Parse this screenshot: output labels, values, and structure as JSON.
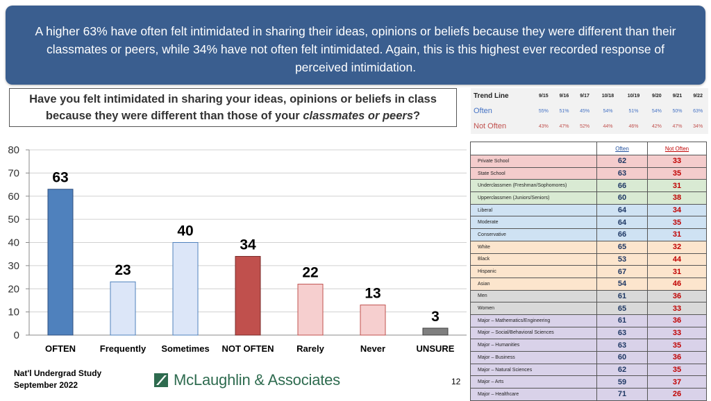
{
  "banner": {
    "text": "A higher 63% have often felt intimidated in sharing their ideas, opinions or beliefs because they were different than their classmates or peers, while 34% have not often felt intimidated. Again, this is this highest ever recorded response of perceived intimidation."
  },
  "question": {
    "text_before": "Have you felt intimidated in sharing your ideas, opinions or beliefs in class because they were different than those of your ",
    "text_italic": "classmates or peers",
    "text_after": "?"
  },
  "chart_data": {
    "type": "bar",
    "categories": [
      "OFTEN",
      "Frequently",
      "Sometimes",
      "NOT OFTEN",
      "Rarely",
      "Never",
      "UNSURE"
    ],
    "values": [
      63,
      23,
      40,
      34,
      22,
      13,
      3
    ],
    "ylim": [
      0,
      80
    ],
    "yticks": [
      0,
      10,
      20,
      30,
      40,
      50,
      60,
      70,
      80
    ],
    "grid": true,
    "colors": [
      "#4f81bd",
      "#dce6f8",
      "#dce6f8",
      "#c0504d",
      "#f6cfcf",
      "#f6cfcf",
      "#7f7f7f"
    ],
    "stroke_colors": [
      "#2f4f7f",
      "#4f81bd",
      "#4f81bd",
      "#7a2a28",
      "#c0504d",
      "#c0504d",
      "#404040"
    ]
  },
  "trend": {
    "header": "Trend Line",
    "dates": [
      "9/15",
      "9/16",
      "9/17",
      "10/18",
      "10/19",
      "9/20",
      "9/21",
      "9/22"
    ],
    "often_label": "Often",
    "often": [
      "55%",
      "51%",
      "45%",
      "54%",
      "51%",
      "54%",
      "50%",
      "63%"
    ],
    "notoften_label": "Not Often",
    "notoften": [
      "43%",
      "47%",
      "52%",
      "44%",
      "46%",
      "42%",
      "47%",
      "34%"
    ]
  },
  "demo": {
    "col_often": "Often",
    "col_notoften": "Not Often",
    "rows": [
      {
        "label": "Private School",
        "often": "62",
        "notoften": "33",
        "color": "pink"
      },
      {
        "label": "State School",
        "often": "63",
        "notoften": "35",
        "color": "pink"
      },
      {
        "label": "Underclassmen (Freshman/Sophomores)",
        "often": "66",
        "notoften": "31",
        "color": "green"
      },
      {
        "label": "Upperclassmen (Juniors/Seniors)",
        "often": "60",
        "notoften": "38",
        "color": "green"
      },
      {
        "label": "Liberal",
        "often": "64",
        "notoften": "34",
        "color": "blue"
      },
      {
        "label": "Moderate",
        "often": "64",
        "notoften": "35",
        "color": "blue"
      },
      {
        "label": "Conservative",
        "often": "66",
        "notoften": "31",
        "color": "blue"
      },
      {
        "label": "White",
        "often": "65",
        "notoften": "32",
        "color": "peach"
      },
      {
        "label": "Black",
        "often": "53",
        "notoften": "44",
        "color": "peach"
      },
      {
        "label": "Hispanic",
        "often": "67",
        "notoften": "31",
        "color": "peach"
      },
      {
        "label": "Asian",
        "often": "54",
        "notoften": "46",
        "color": "peach"
      },
      {
        "label": "Men",
        "often": "61",
        "notoften": "36",
        "color": "gray"
      },
      {
        "label": "Women",
        "often": "65",
        "notoften": "33",
        "color": "gray"
      },
      {
        "label": "Major – Mathematics/Engineering",
        "often": "61",
        "notoften": "36",
        "color": "lav"
      },
      {
        "label": "Major – Social/Behavioral Sciences",
        "often": "63",
        "notoften": "33",
        "color": "lav"
      },
      {
        "label": "Major – Humanities",
        "often": "63",
        "notoften": "35",
        "color": "lav"
      },
      {
        "label": "Major – Business",
        "often": "60",
        "notoften": "36",
        "color": "lav"
      },
      {
        "label": "Major – Natural Sciences",
        "often": "62",
        "notoften": "35",
        "color": "lav"
      },
      {
        "label": "Major – Arts",
        "often": "59",
        "notoften": "37",
        "color": "lav"
      },
      {
        "label": "Major – Healthcare",
        "often": "71",
        "notoften": "26",
        "color": "lav"
      }
    ]
  },
  "footer": {
    "source_line1": "Nat'l Undergrad Study",
    "source_line2": "September 2022",
    "logo_text": "McLaughlin & Associates",
    "logo_icon": "slash-square-icon",
    "page_number": "12"
  }
}
